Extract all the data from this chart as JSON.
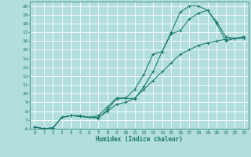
{
  "xlabel": "Humidex (Indice chaleur)",
  "bg_color": "#b2dede",
  "grid_color": "#ffffff",
  "line_color": "#1a7a6a",
  "xlim": [
    -0.5,
    23.5
  ],
  "ylim": [
    6,
    20.5
  ],
  "xticks": [
    0,
    1,
    2,
    3,
    4,
    5,
    6,
    7,
    8,
    9,
    10,
    11,
    12,
    13,
    14,
    15,
    16,
    17,
    18,
    19,
    20,
    21,
    22,
    23
  ],
  "yticks": [
    6,
    7,
    8,
    9,
    10,
    11,
    12,
    13,
    14,
    15,
    16,
    17,
    18,
    19,
    20
  ],
  "line1_x": [
    0,
    1,
    2,
    3,
    4,
    5,
    6,
    7,
    8,
    9,
    10,
    11,
    12,
    13,
    14,
    15,
    16,
    17,
    18,
    19,
    20,
    21,
    22,
    23
  ],
  "line1_y": [
    6.2,
    6.0,
    6.1,
    7.3,
    7.5,
    7.4,
    7.3,
    7.2,
    8.2,
    9.4,
    9.5,
    9.4,
    10.8,
    12.5,
    14.8,
    17.0,
    19.3,
    20.0,
    20.0,
    19.5,
    18.2,
    16.5,
    16.3,
    16.5
  ],
  "line2_x": [
    0,
    1,
    2,
    3,
    4,
    5,
    6,
    7,
    8,
    9,
    10,
    11,
    12,
    13,
    14,
    15,
    16,
    17,
    18,
    19,
    20,
    21,
    22,
    23
  ],
  "line2_y": [
    6.2,
    6.0,
    6.1,
    7.3,
    7.5,
    7.5,
    7.3,
    7.5,
    8.5,
    9.5,
    9.5,
    10.5,
    12.2,
    14.5,
    14.8,
    16.8,
    17.2,
    18.5,
    19.2,
    19.5,
    18.0,
    16.0,
    16.3,
    16.3
  ],
  "line3_x": [
    0,
    1,
    2,
    3,
    4,
    5,
    6,
    7,
    8,
    9,
    10,
    11,
    12,
    13,
    14,
    15,
    16,
    17,
    18,
    19,
    20,
    21,
    22,
    23
  ],
  "line3_y": [
    6.2,
    6.0,
    6.1,
    7.3,
    7.5,
    7.4,
    7.3,
    7.3,
    8.0,
    8.8,
    9.0,
    9.5,
    10.5,
    11.5,
    12.5,
    13.5,
    14.5,
    15.0,
    15.5,
    15.8,
    16.0,
    16.2,
    16.3,
    16.5
  ]
}
